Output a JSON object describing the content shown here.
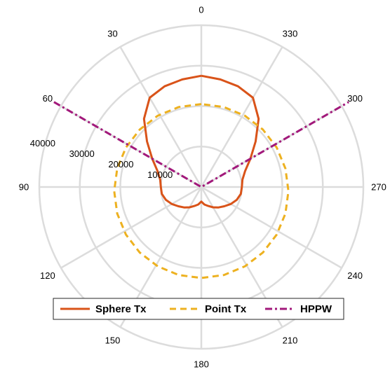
{
  "chart_data": {
    "type": "polar-line",
    "theta_direction": "counterclockwise",
    "theta_zero_location": "top",
    "theta_ticks": [
      0,
      30,
      60,
      90,
      120,
      150,
      180,
      210,
      240,
      270,
      300,
      330
    ],
    "theta_tick_labels": [
      "0",
      "30",
      "60",
      "90",
      "120",
      "150",
      "180",
      "210",
      "240",
      "270",
      "300",
      "330"
    ],
    "r_ticks": [
      10000,
      20000,
      30000,
      40000
    ],
    "r_tick_labels": [
      "10000",
      "20000",
      "30000",
      "40000"
    ],
    "rlim": [
      0,
      40000
    ],
    "grid": true,
    "legend_position": "bottom",
    "series": [
      {
        "name": "Sphere Tx",
        "color": "#D95319",
        "style": "solid",
        "theta": [
          0,
          10,
          20,
          30,
          40,
          50,
          60,
          70,
          80,
          90,
          100,
          110,
          120,
          130,
          140,
          150,
          160,
          170,
          180,
          190,
          200,
          210,
          220,
          230,
          240,
          250,
          260,
          270,
          280,
          290,
          300,
          310,
          320,
          330,
          340,
          350,
          360
        ],
        "r": [
          27500,
          27000,
          26500,
          25500,
          22000,
          17500,
          14000,
          11500,
          10300,
          10000,
          9900,
          9300,
          8400,
          7400,
          6600,
          5800,
          5000,
          4400,
          3600,
          4400,
          5000,
          5800,
          6600,
          7400,
          8400,
          9300,
          9900,
          10000,
          10300,
          11500,
          14000,
          17500,
          22000,
          25500,
          26500,
          27000,
          27500
        ]
      },
      {
        "name": "Point Tx",
        "color": "#EDB120",
        "style": "dashed",
        "theta": [
          0,
          15,
          30,
          45,
          60,
          75,
          90,
          105,
          120,
          135,
          150,
          165,
          180,
          195,
          210,
          225,
          240,
          255,
          270,
          285,
          300,
          315,
          330,
          345,
          360
        ],
        "center_offset": [
          0,
          -1000
        ],
        "r": [
          21500,
          21500,
          21500,
          21500,
          21500,
          21500,
          21500,
          21500,
          21500,
          21500,
          21500,
          21500,
          21500,
          21500,
          21500,
          21500,
          21500,
          21500,
          21500,
          21500,
          21500,
          21500,
          21500,
          21500,
          21500
        ]
      },
      {
        "name": "HPPW",
        "color": "#A2197B",
        "style": "dash-dot",
        "theta": [
          60,
          0,
          300
        ],
        "r": [
          42000,
          0,
          42000
        ]
      }
    ]
  }
}
